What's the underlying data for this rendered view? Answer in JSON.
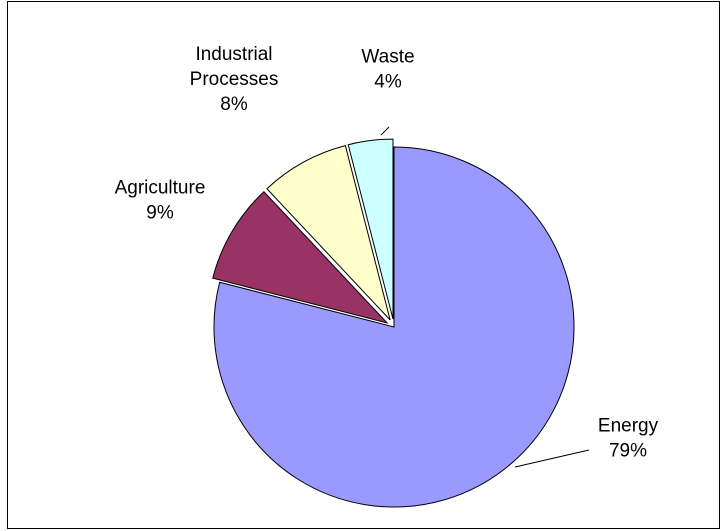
{
  "chart_data": {
    "type": "pie",
    "title": "",
    "start_angle_deg": 0,
    "direction": "clockwise",
    "slices": [
      {
        "name": "Energy",
        "value": 79,
        "pct_label": "79%",
        "color": "#9999ff",
        "exploded": false
      },
      {
        "name": "Agriculture",
        "value": 9,
        "pct_label": "9%",
        "color": "#993366",
        "exploded": true
      },
      {
        "name": "Industrial Processes",
        "name_lines": [
          "Industrial",
          "Processes"
        ],
        "value": 8,
        "pct_label": "8%",
        "color": "#ffffcc",
        "exploded": true
      },
      {
        "name": "Waste",
        "value": 4,
        "pct_label": "4%",
        "color": "#ccffff",
        "exploded": true
      }
    ],
    "legend": "none",
    "data_labels": "outside, name and percent"
  }
}
